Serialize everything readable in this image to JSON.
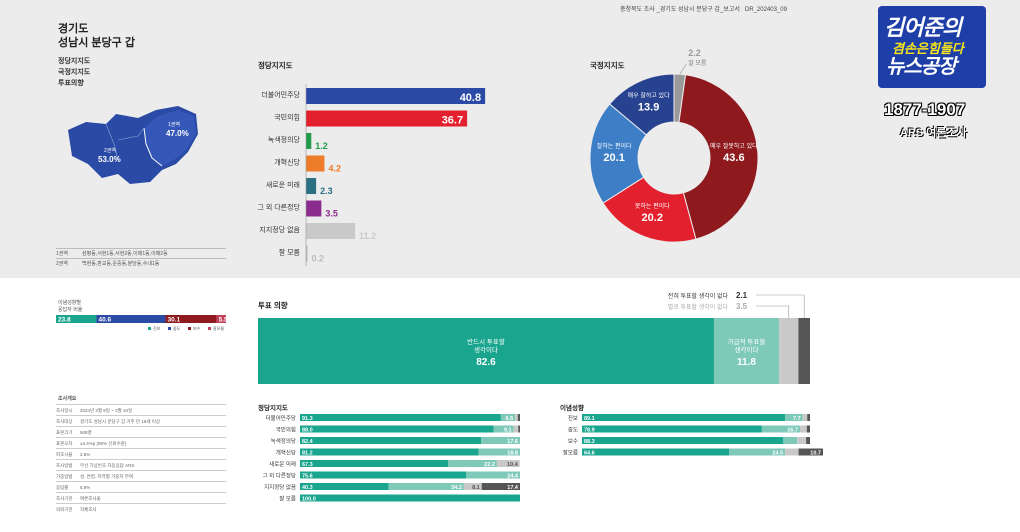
{
  "header": {
    "report_line": "충청북도 조사 _경기도 성남시 분당구 갑_보고서",
    "report_code": "DR_202403_09"
  },
  "region": {
    "title_line1": "경기도",
    "title_line2": "성남시 분당구 갑",
    "subtitles": [
      "정당지지도",
      "국정지지도",
      "투표의향"
    ]
  },
  "map": {
    "area1_label": "1권역",
    "area1_value": "47.0%",
    "area2_label": "2권역",
    "area2_value": "53.0%"
  },
  "region_table": [
    {
      "area": "1권역",
      "desc": "삼평동,서현1동,서현2동,이매1동,이매2동"
    },
    {
      "area": "2권역",
      "desc": "백현동,판교동,운중동,분당동,수내1동"
    }
  ],
  "logo": {
    "line1": "김어준의",
    "badge": "겸손은힘들다",
    "line2": "뉴스공장",
    "range": "1877-1907",
    "ars": "ARS 여론조사"
  },
  "chart_data": [
    {
      "type": "bar",
      "title": "정당지지도",
      "categories": [
        "더불어민주당",
        "국민의힘",
        "녹색정의당",
        "개혁신당",
        "새로운 미래",
        "그 외 다른정당",
        "지지정당 없음",
        "잘 모름"
      ],
      "values": [
        40.8,
        36.7,
        1.2,
        4.2,
        2.3,
        3.5,
        11.2,
        0.2
      ],
      "colors": [
        "#2b4aa5",
        "#e3202d",
        "#1e9c4a",
        "#ee7d2a",
        "#2a6f82",
        "#8b2b8d",
        "#c9c9c9",
        "#bdbdbd"
      ]
    },
    {
      "type": "pie",
      "title": "국정지지도",
      "labels": [
        "매우 잘하고 있다",
        "잘하는 편이다",
        "못하는 편이다",
        "매우 잘못하고 있다",
        "잘 모름"
      ],
      "values": [
        13.9,
        20.1,
        20.2,
        43.6,
        2.2
      ],
      "colors": [
        "#27428f",
        "#3d7ec6",
        "#e3202d",
        "#8e1a1e",
        "#9a9a9a"
      ]
    },
    {
      "type": "bar",
      "title": "투표 의향",
      "categories": [
        "반드시 투표할 생각이다",
        "가급적 투표할 생각이다",
        "별로 투표할 생각이 없다",
        "전혀 투표할 생각이 없다"
      ],
      "values": [
        82.6,
        11.8,
        3.5,
        2.1
      ],
      "colors": [
        "#1aa58f",
        "#7fc9b9",
        "#c9c9c9",
        "#555555"
      ]
    },
    {
      "type": "bar",
      "title": "정당지지도",
      "categories": [
        "더불어민주당",
        "국민의힘",
        "녹색정의당",
        "개혁신당",
        "새로운 미래",
        "그 외 다른정당",
        "지지정당 없음",
        "잘 모름"
      ],
      "series": [
        {
          "values": [
            91.3,
            88.0,
            82.4,
            81.2,
            67.3,
            75.6,
            40.3,
            100.0
          ]
        },
        {
          "values": [
            6.5,
            9.1,
            17.6,
            18.8,
            22.2,
            24.4,
            34.2,
            0
          ]
        },
        {
          "values": [
            1.2,
            2.1,
            0,
            0,
            10.4,
            0,
            8.1,
            0
          ]
        },
        {
          "values": [
            1.0,
            0.8,
            0,
            0,
            0,
            0,
            17.4,
            0
          ]
        }
      ],
      "colors": [
        "#1aa58f",
        "#7fc9b9",
        "#c9c9c9",
        "#555555"
      ]
    },
    {
      "type": "bar",
      "title": "이념성향",
      "categories": [
        "진보",
        "중도",
        "보수",
        "잘모름"
      ],
      "series": [
        {
          "values": [
            89.1,
            78.9,
            88.3,
            64.6
          ]
        },
        {
          "values": [
            7.7,
            16.7,
            6.1,
            24.5
          ]
        },
        {
          "values": [
            2.0,
            3.0,
            3.9,
            5.9
          ]
        },
        {
          "values": [
            1.2,
            1.4,
            1.7,
            10.7
          ]
        }
      ],
      "colors": [
        "#1aa58f",
        "#7fc9b9",
        "#c9c9c9",
        "#555555"
      ]
    }
  ],
  "ideology_legend": {
    "title_line1": "이념성향별",
    "title_line2": "응답자 비율",
    "values": [
      "23.8",
      "40.6",
      "30.1",
      "5.5"
    ],
    "names": [
      "진보",
      "중도",
      "보수",
      "잘모름"
    ],
    "colors": [
      "#1aa58f",
      "#2b4aa5",
      "#8e1a1e",
      "#c0405a"
    ]
  },
  "survey": {
    "title": "조사개요",
    "rows": [
      {
        "k": "조사일시",
        "v": "2024년 3월 9일 ~ 3월 10일"
      },
      {
        "k": "조사대상",
        "v": "경기도 성남시 분당구 갑 거주 만 18세 이상"
      },
      {
        "k": "표본크기",
        "v": "508명"
      },
      {
        "k": "표본오차",
        "v": "±4.4%p (95% 신뢰수준)"
      },
      {
        "k": "피조사율",
        "v": "3.8%"
      },
      {
        "k": "조사방법",
        "v": "무선 가상번호 자동응답 ARS"
      },
      {
        "k": "가중방법",
        "v": "성, 연령, 지역별 가중치 부여"
      },
      {
        "k": "응답률",
        "v": "5.9%"
      },
      {
        "k": "조사기관",
        "v": "여론조사꽃"
      },
      {
        "k": "의뢰기관",
        "v": "자체조사"
      }
    ]
  }
}
